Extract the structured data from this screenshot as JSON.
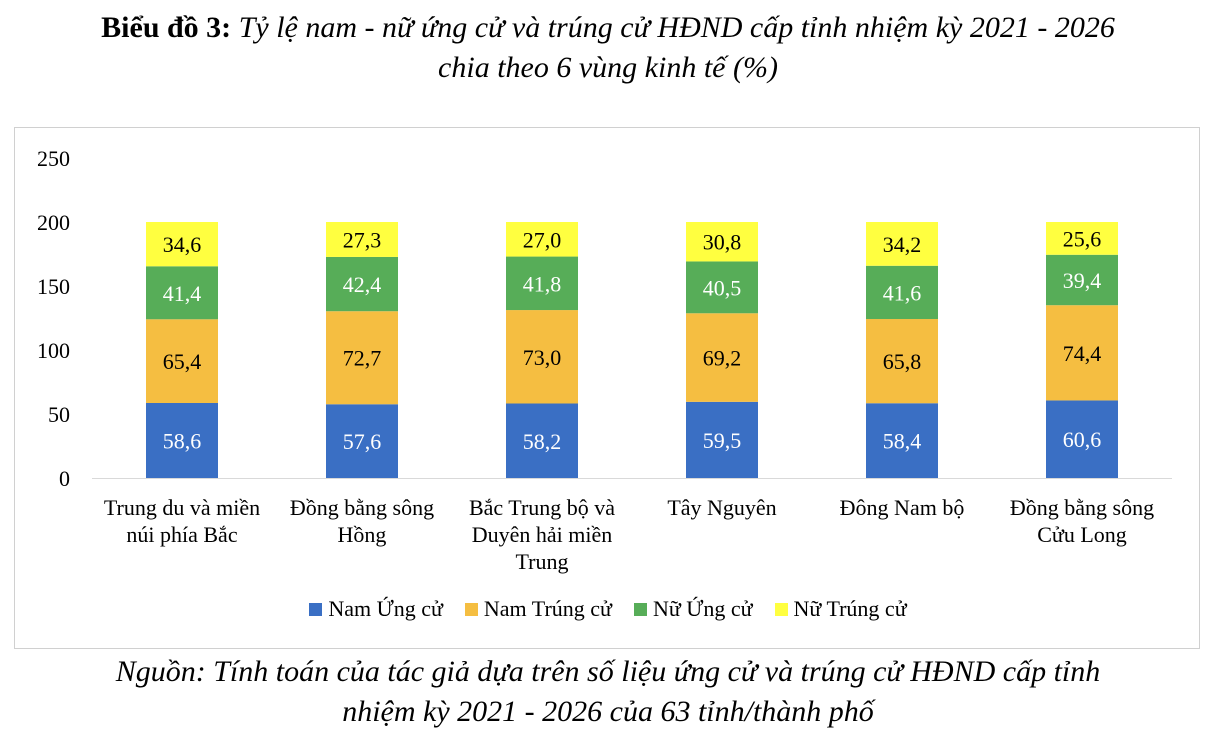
{
  "title": {
    "label": "Biểu đồ 3:",
    "text_line1": "Tỷ lệ nam - nữ ứng cử và trúng cử HĐND cấp tỉnh nhiệm kỳ 2021 - 2026",
    "text_line2": "chia theo 6 vùng kinh tế (%)"
  },
  "source": {
    "line1": "Nguồn: Tính toán của tác giả dựa trên số liệu ứng cử và trúng cử HĐND cấp tỉnh",
    "line2": "nhiệm kỳ 2021 - 2026 của 63 tỉnh/thành phố"
  },
  "chart_data": {
    "type": "bar",
    "stacked": true,
    "categories": [
      [
        "Trung du và miền",
        "núi phía Bắc"
      ],
      [
        "Đồng bằng sông",
        "Hồng"
      ],
      [
        "Bắc Trung bộ và",
        "Duyên hải miền",
        "Trung"
      ],
      [
        "Tây Nguyên"
      ],
      [
        "Đông Nam bộ"
      ],
      [
        "Đồng bằng sông",
        "Cửu Long"
      ]
    ],
    "series": [
      {
        "name": "Nam Ứng cử",
        "color": "#3a6fc4",
        "label_color": "#ffffff",
        "values": [
          58.6,
          57.6,
          58.2,
          59.5,
          58.4,
          60.6
        ],
        "labels": [
          "58,6",
          "57,6",
          "58,2",
          "59,5",
          "58,4",
          "60,6"
        ]
      },
      {
        "name": "Nam Trúng cử",
        "color": "#f5be41",
        "label_color": "#000000",
        "values": [
          65.4,
          72.7,
          73.0,
          69.2,
          65.8,
          74.4
        ],
        "labels": [
          "65,4",
          "72,7",
          "73,0",
          "69,2",
          "65,8",
          "74,4"
        ]
      },
      {
        "name": "Nữ Ứng cử",
        "color": "#57ad58",
        "label_color": "#ffffff",
        "values": [
          41.4,
          42.4,
          41.8,
          40.5,
          41.6,
          39.4
        ],
        "labels": [
          "41,4",
          "42,4",
          "41,8",
          "40,5",
          "41,6",
          "39,4"
        ]
      },
      {
        "name": "Nữ Trúng cử",
        "color": "#ffff40",
        "label_color": "#000000",
        "values": [
          34.6,
          27.3,
          27.0,
          30.8,
          34.2,
          25.6
        ],
        "labels": [
          "34,6",
          "27,3",
          "27,0",
          "30,8",
          "34,2",
          "25,6"
        ]
      }
    ],
    "yticks": [
      "0",
      "50",
      "100",
      "150",
      "200",
      "250"
    ],
    "ylim": [
      0,
      250
    ],
    "grid": false,
    "legend": "bottom"
  }
}
